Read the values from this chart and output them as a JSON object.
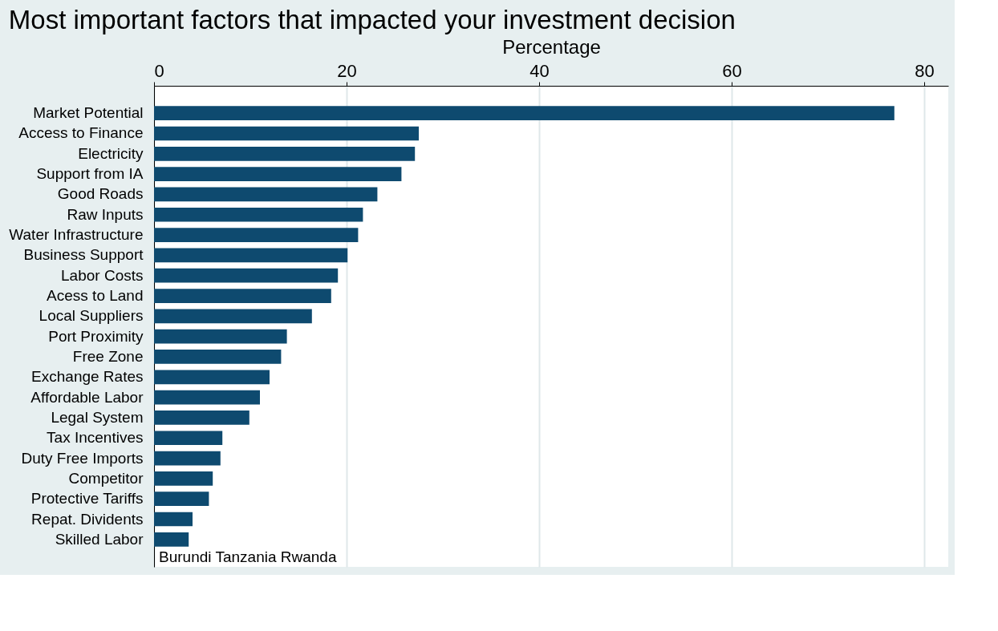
{
  "chart_data": {
    "type": "bar",
    "orientation": "horizontal",
    "title": "Most important factors that impacted your investment decision",
    "xlabel": "Percentage",
    "categories": [
      "Market Potential",
      "Access to Finance",
      "Electricity",
      "Support from IA",
      "Good Roads",
      "Raw Inputs",
      "Water Infrastructure",
      "Business Support",
      "Labor Costs",
      "Acess to Land",
      "Local Suppliers",
      "Port Proximity",
      "Free Zone",
      "Exchange Rates",
      "Affordable Labor",
      "Legal System",
      "Tax Incentives",
      "Duty Free Imports",
      "Competitor",
      "Protective Tariffs",
      "Repat. Dividents",
      "Skilled Labor"
    ],
    "values": [
      76.9,
      27.5,
      27.1,
      25.7,
      23.2,
      21.7,
      21.2,
      20.1,
      19.1,
      18.4,
      16.4,
      13.8,
      13.2,
      12.0,
      11.0,
      9.9,
      7.1,
      6.9,
      6.1,
      5.7,
      4.0,
      3.6
    ],
    "color": "#0e4a6f",
    "xlim": [
      0,
      82.5
    ],
    "xticks": [
      0,
      20,
      40,
      60,
      80
    ],
    "grid": "x",
    "annotations": [
      "Burundi Tanzania Rwanda"
    ]
  }
}
